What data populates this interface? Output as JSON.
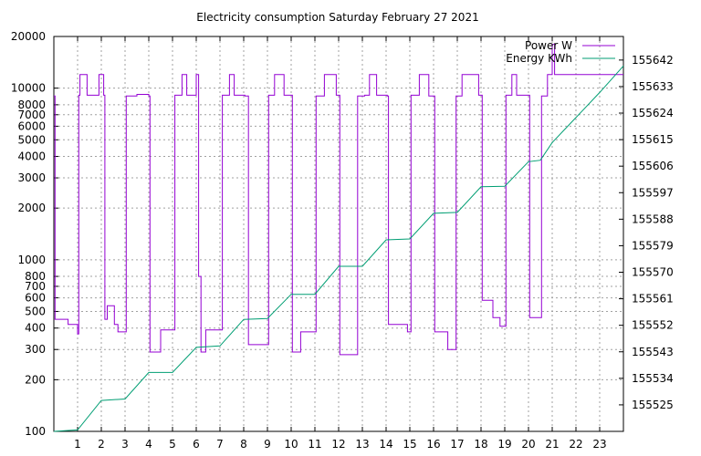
{
  "chart_data": {
    "type": "line",
    "title": "Electricity consumption Saturday February 27 2021",
    "xlabel": "",
    "ylabel": "",
    "grid": true,
    "legend_position": "top-right",
    "x_ticks": [
      1,
      2,
      3,
      4,
      5,
      6,
      7,
      8,
      9,
      10,
      11,
      12,
      13,
      14,
      15,
      16,
      17,
      18,
      19,
      20,
      21,
      22,
      23
    ],
    "x_range": [
      0,
      24
    ],
    "y_left": {
      "scale": "log",
      "range": [
        100,
        20000
      ],
      "ticks": [
        100,
        200,
        300,
        400,
        500,
        600,
        700,
        800,
        1000,
        2000,
        3000,
        4000,
        5000,
        6000,
        7000,
        8000,
        10000,
        20000
      ]
    },
    "y_right": {
      "scale": "linear",
      "range": [
        155516,
        155650
      ],
      "ticks": [
        155525,
        155534,
        155543,
        155552,
        155561,
        155570,
        155579,
        155588,
        155597,
        155606,
        155615,
        155624,
        155633,
        155642
      ]
    },
    "series": [
      {
        "name": "Power W",
        "axis": "left",
        "color": "#9400d3",
        "style": "step",
        "points": [
          [
            0,
            9000
          ],
          [
            0.05,
            450
          ],
          [
            0.6,
            420
          ],
          [
            1.0,
            370
          ],
          [
            1.05,
            9100
          ],
          [
            1.1,
            12000
          ],
          [
            1.4,
            9100
          ],
          [
            1.9,
            12000
          ],
          [
            2.1,
            9100
          ],
          [
            2.15,
            450
          ],
          [
            2.25,
            540
          ],
          [
            2.55,
            420
          ],
          [
            2.7,
            380
          ],
          [
            3.05,
            9000
          ],
          [
            3.5,
            9200
          ],
          [
            4.0,
            9000
          ],
          [
            4.05,
            290
          ],
          [
            4.5,
            390
          ],
          [
            5.1,
            9100
          ],
          [
            5.4,
            12000
          ],
          [
            5.6,
            9100
          ],
          [
            6.0,
            12000
          ],
          [
            6.1,
            800
          ],
          [
            6.2,
            290
          ],
          [
            6.4,
            390
          ],
          [
            7.1,
            9100
          ],
          [
            7.4,
            12000
          ],
          [
            7.6,
            9100
          ],
          [
            8.05,
            9000
          ],
          [
            8.2,
            320
          ],
          [
            9.05,
            9100
          ],
          [
            9.3,
            12000
          ],
          [
            9.7,
            9100
          ],
          [
            10.05,
            290
          ],
          [
            10.4,
            380
          ],
          [
            11.05,
            9000
          ],
          [
            11.4,
            12000
          ],
          [
            11.9,
            9100
          ],
          [
            12.05,
            280
          ],
          [
            12.8,
            9000
          ],
          [
            13.1,
            9100
          ],
          [
            13.3,
            12000
          ],
          [
            13.6,
            9100
          ],
          [
            14.05,
            9000
          ],
          [
            14.1,
            420
          ],
          [
            14.9,
            380
          ],
          [
            15.05,
            9100
          ],
          [
            15.4,
            12000
          ],
          [
            15.8,
            9000
          ],
          [
            16.05,
            380
          ],
          [
            16.6,
            300
          ],
          [
            16.95,
            9000
          ],
          [
            17.2,
            12000
          ],
          [
            17.9,
            9100
          ],
          [
            18.05,
            580
          ],
          [
            18.5,
            460
          ],
          [
            18.8,
            410
          ],
          [
            19.05,
            9100
          ],
          [
            19.3,
            12000
          ],
          [
            19.5,
            9100
          ],
          [
            20.05,
            460
          ],
          [
            20.55,
            9000
          ],
          [
            20.8,
            12000
          ],
          [
            21.0,
            18000
          ],
          [
            21.1,
            12000
          ],
          [
            24,
            12000
          ]
        ]
      },
      {
        "name": "Energy KWh",
        "axis": "right",
        "color": "#009e73",
        "style": "line",
        "points": [
          [
            0,
            155516
          ],
          [
            1.0,
            155516.5
          ],
          [
            2.0,
            155526.5
          ],
          [
            3.0,
            155527
          ],
          [
            4.0,
            155536
          ],
          [
            5.0,
            155536
          ],
          [
            6.0,
            155544.5
          ],
          [
            7.0,
            155545
          ],
          [
            8.0,
            155554
          ],
          [
            9.0,
            155554.3
          ],
          [
            10.0,
            155562.5
          ],
          [
            11.0,
            155562.5
          ],
          [
            12.0,
            155572
          ],
          [
            13.0,
            155572
          ],
          [
            14.0,
            155581
          ],
          [
            15.0,
            155581.3
          ],
          [
            16.0,
            155590
          ],
          [
            17.0,
            155590.3
          ],
          [
            18.0,
            155599
          ],
          [
            19.0,
            155599.2
          ],
          [
            20.0,
            155607.5
          ],
          [
            20.5,
            155608
          ],
          [
            21.0,
            155614
          ],
          [
            22.0,
            155622.5
          ],
          [
            23.0,
            155631
          ],
          [
            24,
            155640
          ]
        ]
      }
    ]
  }
}
